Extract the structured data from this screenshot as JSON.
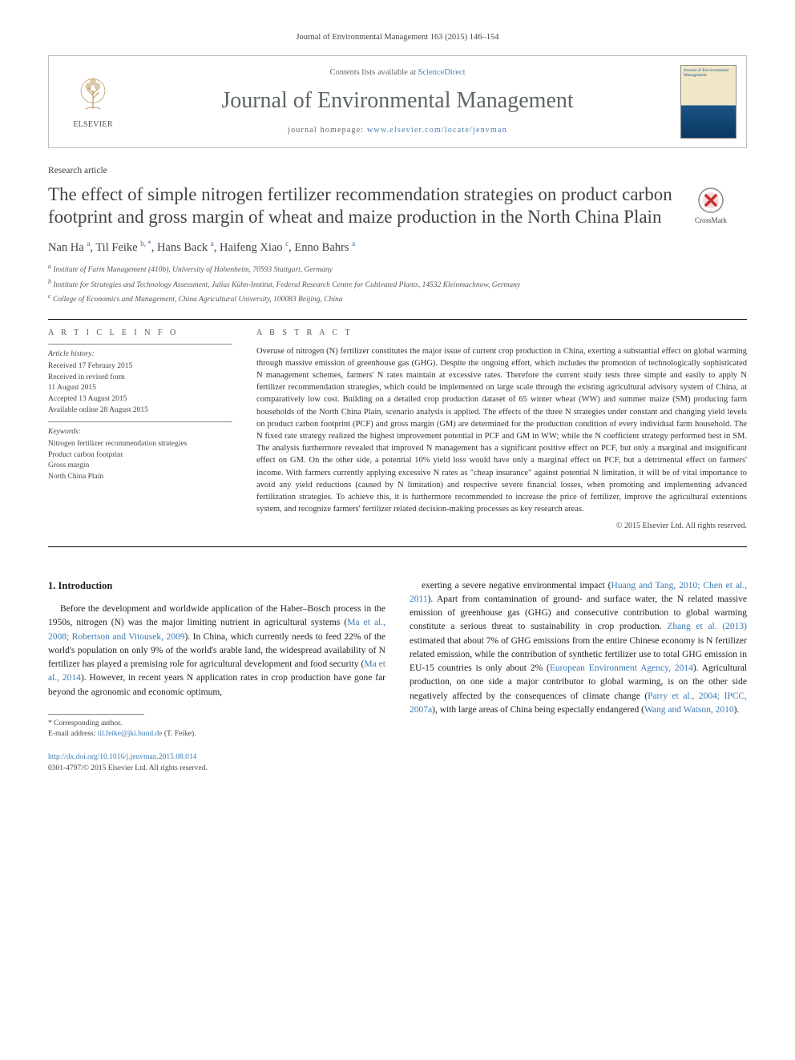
{
  "journal_ref": "Journal of Environmental Management 163 (2015) 146–154",
  "header": {
    "contents_prefix": "Contents lists available at ",
    "contents_link": "ScienceDirect",
    "journal_title": "Journal of Environmental Management",
    "homepage_prefix": "journal homepage: ",
    "homepage_url": "www.elsevier.com/locate/jenvman",
    "publisher_name": "ELSEVIER",
    "cover_caption": "Journal of Environmental Management"
  },
  "article": {
    "type": "Research article",
    "crossmark_label": "CrossMark",
    "title": "The effect of simple nitrogen fertilizer recommendation strategies on product carbon footprint and gross margin of wheat and maize production in the North China Plain",
    "authors_html": "Nan Ha <sup>a</sup>, Til Feike <sup>b, *</sup>, Hans Back <sup>a</sup>, Haifeng Xiao <sup>c</sup>, Enno Bahrs <sup>a</sup>",
    "affiliations": [
      "a Institute of Farm Management (410b), University of Hohenheim, 70593 Stuttgart, Germany",
      "b Institute for Strategies and Technology Assessment, Julius Kühn-Institut, Federal Research Centre for Cultivated Plants, 14532 Kleinmachnow, Germany",
      "c College of Economics and Management, China Agricultural University, 100083 Beijing, China"
    ]
  },
  "info": {
    "heading": "A R T I C L E   I N F O",
    "history_label": "Article history:",
    "history": [
      "Received 17 February 2015",
      "Received in revised form",
      "11 August 2015",
      "Accepted 13 August 2015",
      "Available online 28 August 2015"
    ],
    "keywords_label": "Keywords:",
    "keywords": [
      "Nitrogen fertilizer recommendation strategies",
      "Product carbon footprint",
      "Gross margin",
      "North China Plain"
    ]
  },
  "abstract": {
    "heading": "A B S T R A C T",
    "text": "Overuse of nitrogen (N) fertilizer constitutes the major issue of current crop production in China, exerting a substantial effect on global warming through massive emission of greenhouse gas (GHG). Despite the ongoing effort, which includes the promotion of technologically sophisticated N management schemes, farmers' N rates maintain at excessive rates. Therefore the current study tests three simple and easily to apply N fertilizer recommendation strategies, which could be implemented on large scale through the existing agricultural advisory system of China, at comparatively low cost. Building on a detailed crop production dataset of 65 winter wheat (WW) and summer maize (SM) producing farm households of the North China Plain, scenario analysis is applied. The effects of the three N strategies under constant and changing yield levels on product carbon footprint (PCF) and gross margin (GM) are determined for the production condition of every individual farm household. The N fixed rate strategy realized the highest improvement potential in PCF and GM in WW; while the N coefficient strategy performed best in SM. The analysis furthermore revealed that improved N management has a significant positive effect on PCF, but only a marginal and insignificant effect on GM. On the other side, a potential 10% yield loss would have only a marginal effect on PCF, but a detrimental effect on farmers' income. With farmers currently applying excessive N rates as \"cheap insurance\" against potential N limitation, it will be of vital importance to avoid any yield reductions (caused by N limitation) and respective severe financial losses, when promoting and implementing advanced fertilization strategies. To achieve this, it is furthermore recommended to increase the price of fertilizer, improve the agricultural extensions system, and recognize farmers' fertilizer related decision-making processes as key research areas.",
    "copyright": "© 2015 Elsevier Ltd. All rights reserved."
  },
  "body": {
    "section_heading": "1. Introduction",
    "left_para": "Before the development and worldwide application of the Haber–Bosch process in the 1950s, nitrogen (N) was the major limiting nutrient in agricultural systems (Ma et al., 2008; Robertson and Vitousek, 2009). In China, which currently needs to feed 22% of the world's population on only 9% of the world's arable land, the widespread availability of N fertilizer has played a premising role for agricultural development and food security (Ma et al., 2014). However, in recent years N application rates in crop production have gone far beyond the agronomic and economic optimum,",
    "right_para": "exerting a severe negative environmental impact (Huang and Tang, 2010; Chen et al., 2011). Apart from contamination of ground- and surface water, the N related massive emission of greenhouse gas (GHG) and consecutive contribution to global warming constitute a serious threat to sustainability in crop production. Zhang et al. (2013) estimated that about 7% of GHG emissions from the entire Chinese economy is N fertilizer related emission, while the contribution of synthetic fertilizer use to total GHG emission in EU-15 countries is only about 2% (European Environment Agency, 2014). Agricultural production, on one side a major contributor to global warming, is on the other side negatively affected by the consequences of climate change (Parry et al., 2004; IPCC, 2007a), with large areas of China being especially endangered (Wang and Watson, 2010).",
    "left_cites": [
      "Ma et al., 2008; Robertson and Vitousek, 2009",
      "Ma et al., 2014"
    ],
    "right_cites": [
      "Huang and Tang, 2010; Chen et al., 2011",
      "Zhang et al. (2013)",
      "European Environment Agency, 2014",
      "Parry et al., 2004; IPCC, 2007a",
      "Wang and Watson, 2010"
    ]
  },
  "footnote": {
    "corresponding": "* Corresponding author.",
    "email_label": "E-mail address: ",
    "email": "til.feike@jki.bund.de",
    "email_suffix": " (T. Feike)."
  },
  "footer": {
    "doi": "http://dx.doi.org/10.1016/j.jenvman.2015.08.014",
    "issn_line": "0301-4797/© 2015 Elsevier Ltd. All rights reserved."
  },
  "colors": {
    "link": "#3a7ab5",
    "journal_title": "#5d675f",
    "text": "#222222",
    "muted": "#555555",
    "rule": "#000000"
  },
  "typography": {
    "journal_title_pt": 28,
    "article_title_pt": 23,
    "authors_pt": 14.5,
    "body_pt": 11.5,
    "abstract_pt": 10.5,
    "info_pt": 9.5,
    "footnote_pt": 9.5
  }
}
